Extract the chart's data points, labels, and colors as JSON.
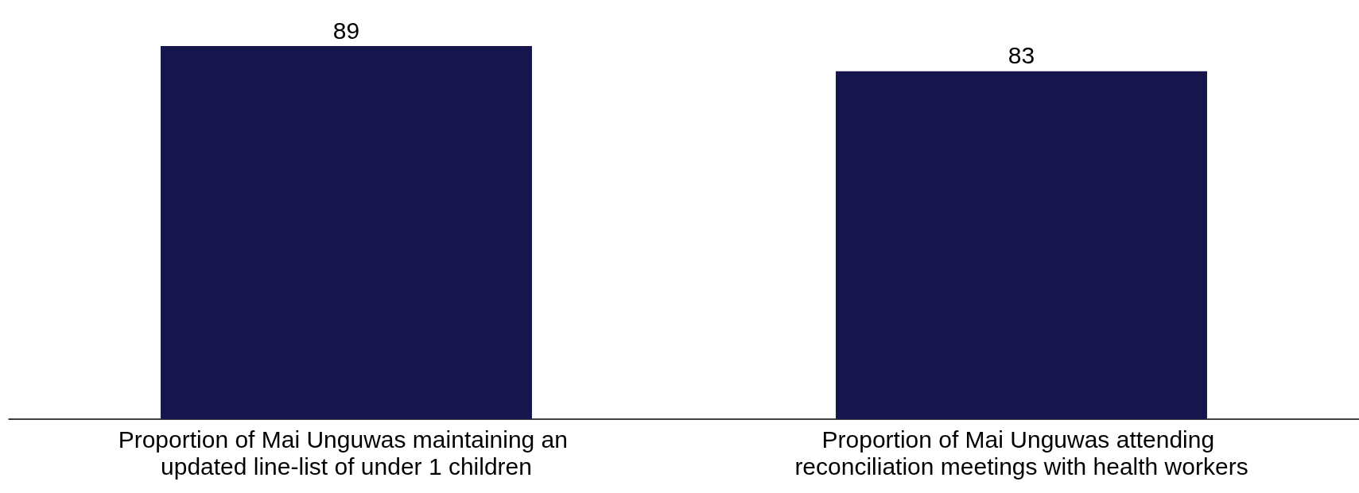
{
  "chart_data": {
    "type": "bar",
    "categories": [
      "Proportion of Mai Unguwas maintaining an updated line-list of under 1 children",
      "Proportion of Mai Unguwas attending reconciliation meetings with health workers"
    ],
    "values": [
      89,
      83
    ],
    "color": "#16164d",
    "data_labels": true
  }
}
